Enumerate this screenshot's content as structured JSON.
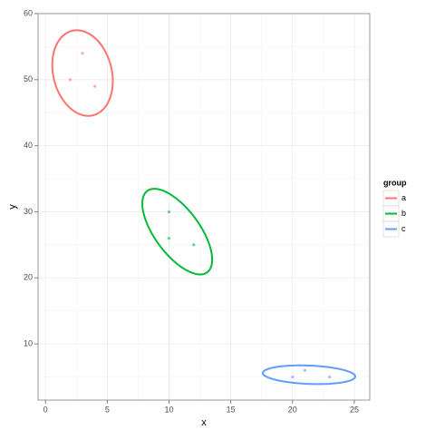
{
  "chart_data": {
    "type": "scatter",
    "xlabel": "x",
    "ylabel": "y",
    "legend_title": "group",
    "legend": "right",
    "grid": true,
    "xlim": [
      -0.6,
      26.25
    ],
    "xticks": [
      0,
      5,
      10,
      15,
      20,
      25
    ],
    "ylim": [
      1.5,
      60
    ],
    "yticks": [
      10,
      20,
      30,
      40,
      50,
      60
    ],
    "series": [
      {
        "name": "a",
        "color": "#F8766D",
        "x": [
          2,
          3,
          4
        ],
        "values": [
          50,
          54,
          49
        ]
      },
      {
        "name": "b",
        "color": "#00BA38",
        "x": [
          10,
          10,
          12
        ],
        "values": [
          30,
          26,
          25
        ]
      },
      {
        "name": "c",
        "color": "#619CFF",
        "x": [
          20,
          21,
          23
        ],
        "values": [
          5,
          6,
          5
        ]
      }
    ]
  }
}
